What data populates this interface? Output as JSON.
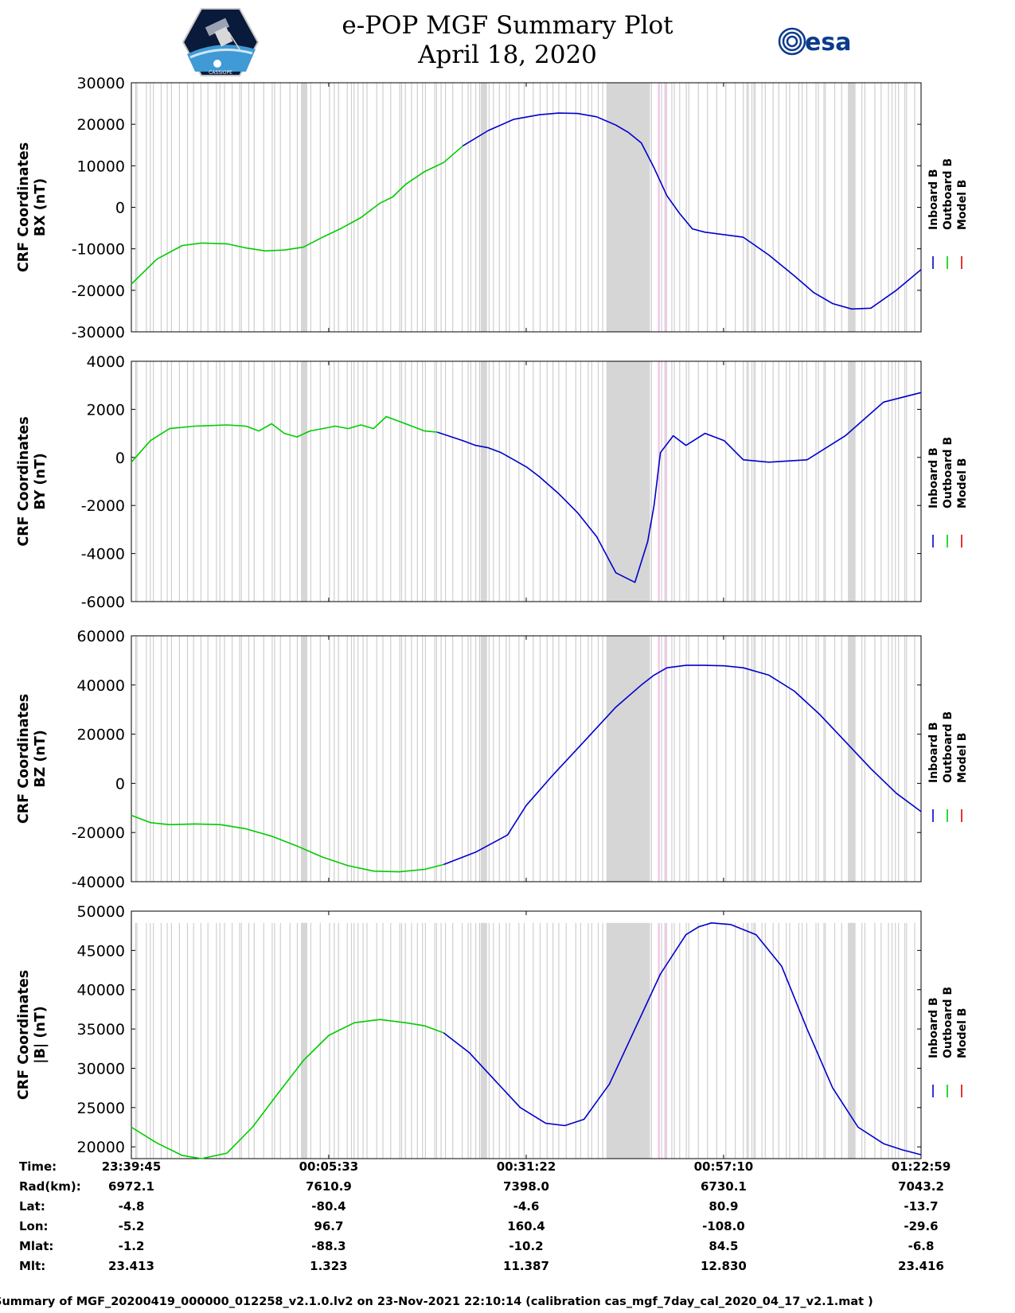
{
  "header": {
    "title_line1": "e-POP MGF Summary Plot",
    "title_line2": "April 18, 2020",
    "logo_left_text": "CASSIOPE",
    "logo_right_text": "esa"
  },
  "colors": {
    "inboard": "#0000cc",
    "outboard": "#00cc00",
    "model": "#e00000",
    "shade": "#d6d6d6",
    "pink": "#f0c8e8"
  },
  "legend": {
    "inboard": "Inboard B",
    "outboard": "Outboard B",
    "model": "Model B"
  },
  "time_x": [
    0,
    1548,
    3097,
    4645,
    6194
  ],
  "shade_spans": [
    [
      3730,
      4060
    ],
    [
      2740,
      2790
    ],
    [
      1330,
      1380
    ],
    [
      5620,
      5680
    ]
  ],
  "pink_spans": [
    [
      4130,
      4145
    ],
    [
      4190,
      4200
    ]
  ],
  "chart_data": [
    {
      "type": "line",
      "name": "bx",
      "ylabel": "CRF Coordinates\nBX (nT)",
      "ylabel_line1": "CRF Coordinates",
      "ylabel_line2": "BX (nT)",
      "ylim": [
        -30000,
        30000
      ],
      "yticks": [
        -30000,
        -20000,
        -10000,
        0,
        10000,
        20000,
        30000
      ],
      "ytick_labels": [
        "-30000",
        "-20000",
        "-10000",
        "0",
        "10000",
        "20000",
        "30000"
      ],
      "series": [
        {
          "name": "Outboard B",
          "x": [
            0,
            200,
            400,
            550,
            750,
            900,
            1050,
            1200,
            1350,
            1500,
            1650,
            1800,
            1950,
            2050,
            2150,
            2300,
            2450,
            2600
          ],
          "values": [
            -18500,
            -12500,
            -9200,
            -8600,
            -8800,
            -9800,
            -10500,
            -10300,
            -9600,
            -7200,
            -5000,
            -2500,
            1000,
            2500,
            5500,
            8600,
            10800,
            14800
          ]
        },
        {
          "name": "Inboard B",
          "x": [
            2600,
            2800,
            3000,
            3200,
            3350,
            3500,
            3650,
            3800,
            3900,
            4000,
            4100,
            4200,
            4300,
            4400,
            4500,
            4650,
            4800,
            5000,
            5200,
            5350,
            5500,
            5650,
            5800,
            6000,
            6194
          ],
          "values": [
            14800,
            18500,
            21200,
            22300,
            22700,
            22600,
            21800,
            19800,
            18000,
            15500,
            9500,
            2800,
            -1500,
            -5200,
            -6000,
            -6600,
            -7200,
            -11500,
            -16500,
            -20500,
            -23200,
            -24500,
            -24300,
            -20000,
            -15000
          ]
        },
        {
          "name": "Model B",
          "x": [],
          "values": []
        }
      ]
    },
    {
      "type": "line",
      "name": "by",
      "ylabel": "CRF Coordinates\nBY (nT)",
      "ylabel_line1": "CRF Coordinates",
      "ylabel_line2": "BY (nT)",
      "ylim": [
        -6000,
        4000
      ],
      "yticks": [
        -6000,
        -4000,
        -2000,
        0,
        2000,
        4000
      ],
      "ytick_labels": [
        "-6000",
        "-4000",
        "-2000",
        "0",
        "2000",
        "4000"
      ],
      "series": [
        {
          "name": "Outboard B",
          "x": [
            0,
            150,
            300,
            500,
            750,
            900,
            1000,
            1100,
            1200,
            1300,
            1400,
            1500,
            1600,
            1700,
            1800,
            1900,
            2000,
            2100,
            2200,
            2300,
            2400
          ],
          "values": [
            -200,
            700,
            1200,
            1300,
            1350,
            1300,
            1100,
            1400,
            1000,
            850,
            1100,
            1200,
            1300,
            1200,
            1350,
            1200,
            1700,
            1500,
            1300,
            1100,
            1050
          ]
        },
        {
          "name": "Inboard B",
          "x": [
            2400,
            2600,
            2700,
            2800,
            2900,
            3000,
            3100,
            3200,
            3350,
            3500,
            3650,
            3800,
            3950,
            4050,
            4100,
            4150,
            4250,
            4350,
            4500,
            4650,
            4800,
            5000,
            5300,
            5600,
            5900,
            6194
          ],
          "values": [
            1050,
            700,
            500,
            400,
            200,
            -100,
            -400,
            -800,
            -1500,
            -2300,
            -3300,
            -4800,
            -5200,
            -3500,
            -2000,
            200,
            900,
            500,
            1000,
            700,
            -100,
            -200,
            -100,
            900,
            2300,
            2700
          ]
        },
        {
          "name": "Model B",
          "x": [],
          "values": []
        }
      ]
    },
    {
      "type": "line",
      "name": "bz",
      "ylabel": "CRF Coordinates\nBZ (nT)",
      "ylabel_line1": "CRF Coordinates",
      "ylabel_line2": "BZ (nT)",
      "ylim": [
        -40000,
        60000
      ],
      "yticks": [
        -40000,
        -20000,
        0,
        20000,
        40000,
        60000
      ],
      "ytick_labels": [
        "-40000",
        "-20000",
        "0",
        "20000",
        "40000",
        "60000"
      ],
      "series": [
        {
          "name": "Outboard B",
          "x": [
            0,
            150,
            300,
            500,
            700,
            900,
            1100,
            1300,
            1500,
            1700,
            1900,
            2100,
            2300,
            2450
          ],
          "values": [
            -13000,
            -16000,
            -16800,
            -16500,
            -16800,
            -18500,
            -21500,
            -25500,
            -30000,
            -33500,
            -35700,
            -36000,
            -35000,
            -33000
          ]
        },
        {
          "name": "Inboard B",
          "x": [
            2450,
            2700,
            2950,
            3097,
            3300,
            3550,
            3800,
            4000,
            4100,
            4200,
            4350,
            4500,
            4650,
            4800,
            5000,
            5200,
            5400,
            5600,
            5800,
            6000,
            6194
          ],
          "values": [
            -33000,
            -28000,
            -21000,
            -9000,
            3000,
            17000,
            31000,
            40000,
            44000,
            47000,
            48000,
            48000,
            47800,
            47000,
            44000,
            37500,
            28000,
            17000,
            6000,
            -4000,
            -11500
          ]
        },
        {
          "name": "Model B",
          "x": [],
          "values": []
        }
      ]
    },
    {
      "type": "line",
      "name": "bmag",
      "ylabel": "CRF Coordinates\n|B| (nT)",
      "ylabel_line1": "CRF Coordinates",
      "ylabel_line2": "|B| (nT)",
      "ylim": [
        18500,
        50000
      ],
      "yticks": [
        20000,
        25000,
        30000,
        35000,
        40000,
        45000,
        50000
      ],
      "ytick_labels": [
        "20000",
        "25000",
        "30000",
        "35000",
        "40000",
        "45000",
        "50000"
      ],
      "series": [
        {
          "name": "Outboard B",
          "x": [
            0,
            200,
            400,
            550,
            750,
            950,
            1150,
            1350,
            1550,
            1750,
            1950,
            2150,
            2300,
            2450
          ],
          "values": [
            22500,
            20500,
            18900,
            18500,
            19200,
            22500,
            26800,
            31000,
            34200,
            35800,
            36200,
            35800,
            35400,
            34500
          ]
        },
        {
          "name": "Inboard B",
          "x": [
            2450,
            2650,
            2850,
            3050,
            3250,
            3400,
            3550,
            3750,
            3950,
            4150,
            4350,
            4450,
            4550,
            4700,
            4900,
            5100,
            5300,
            5500,
            5700,
            5900,
            6050,
            6194
          ],
          "values": [
            34500,
            32000,
            28500,
            25000,
            23000,
            22700,
            23500,
            28000,
            35000,
            42000,
            47000,
            48000,
            48500,
            48300,
            47000,
            43000,
            35000,
            27500,
            22500,
            20400,
            19600,
            19000
          ]
        },
        {
          "name": "Model B",
          "x": [],
          "values": []
        }
      ]
    }
  ],
  "time_table": {
    "row_labels": [
      "Time:",
      "Rad(km):",
      "Lat:",
      "Lon:",
      "Mlat:",
      "Mlt:"
    ],
    "columns": [
      [
        "23:39:45",
        "6972.1",
        "-4.8",
        "-5.2",
        "-1.2",
        "23.413"
      ],
      [
        "00:05:33",
        "7610.9",
        "-80.4",
        "96.7",
        "-88.3",
        "1.323"
      ],
      [
        "00:31:22",
        "7398.0",
        "-4.6",
        "160.4",
        "-10.2",
        "11.387"
      ],
      [
        "00:57:10",
        "6730.1",
        "80.9",
        "-108.0",
        "84.5",
        "12.830"
      ],
      [
        "01:22:59",
        "7043.2",
        "-13.7",
        "-29.6",
        "-6.8",
        "23.416"
      ]
    ]
  },
  "footer": "Summary of MGF_20200419_000000_012258_v2.1.0.lv2 on 23-Nov-2021 22:10:14 (calibration cas_mgf_7day_cal_2020_04_17_v2.1.mat )"
}
